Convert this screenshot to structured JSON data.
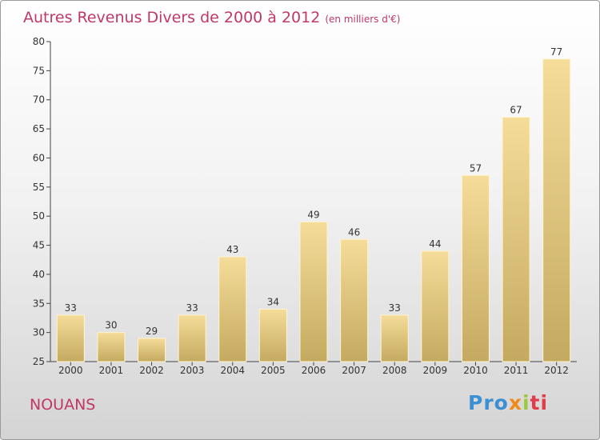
{
  "header": {
    "title": "Autres Revenus Divers de 2000 à 2012",
    "subtitle": "(en milliers d'€)"
  },
  "footer": {
    "place": "NOUANS",
    "logo": [
      "Pro",
      "x",
      "i",
      "ti"
    ]
  },
  "colors": {
    "title": "#c03863",
    "bar_top": "#f5dc99",
    "bar_bottom": "#c4aa60"
  },
  "chart_data": {
    "type": "bar",
    "title": "Autres Revenus Divers de 2000 à 2012",
    "subtitle": "(en milliers d'€)",
    "categories": [
      "2000",
      "2001",
      "2002",
      "2003",
      "2004",
      "2005",
      "2006",
      "2007",
      "2008",
      "2009",
      "2010",
      "2011",
      "2012"
    ],
    "values": [
      33,
      30,
      29,
      33,
      43,
      34,
      49,
      46,
      33,
      44,
      57,
      67,
      77
    ],
    "ylim": [
      25,
      80
    ],
    "yticks": [
      25,
      30,
      35,
      40,
      45,
      50,
      55,
      60,
      65,
      70,
      75,
      80
    ],
    "grid": false,
    "data_labels": true
  }
}
